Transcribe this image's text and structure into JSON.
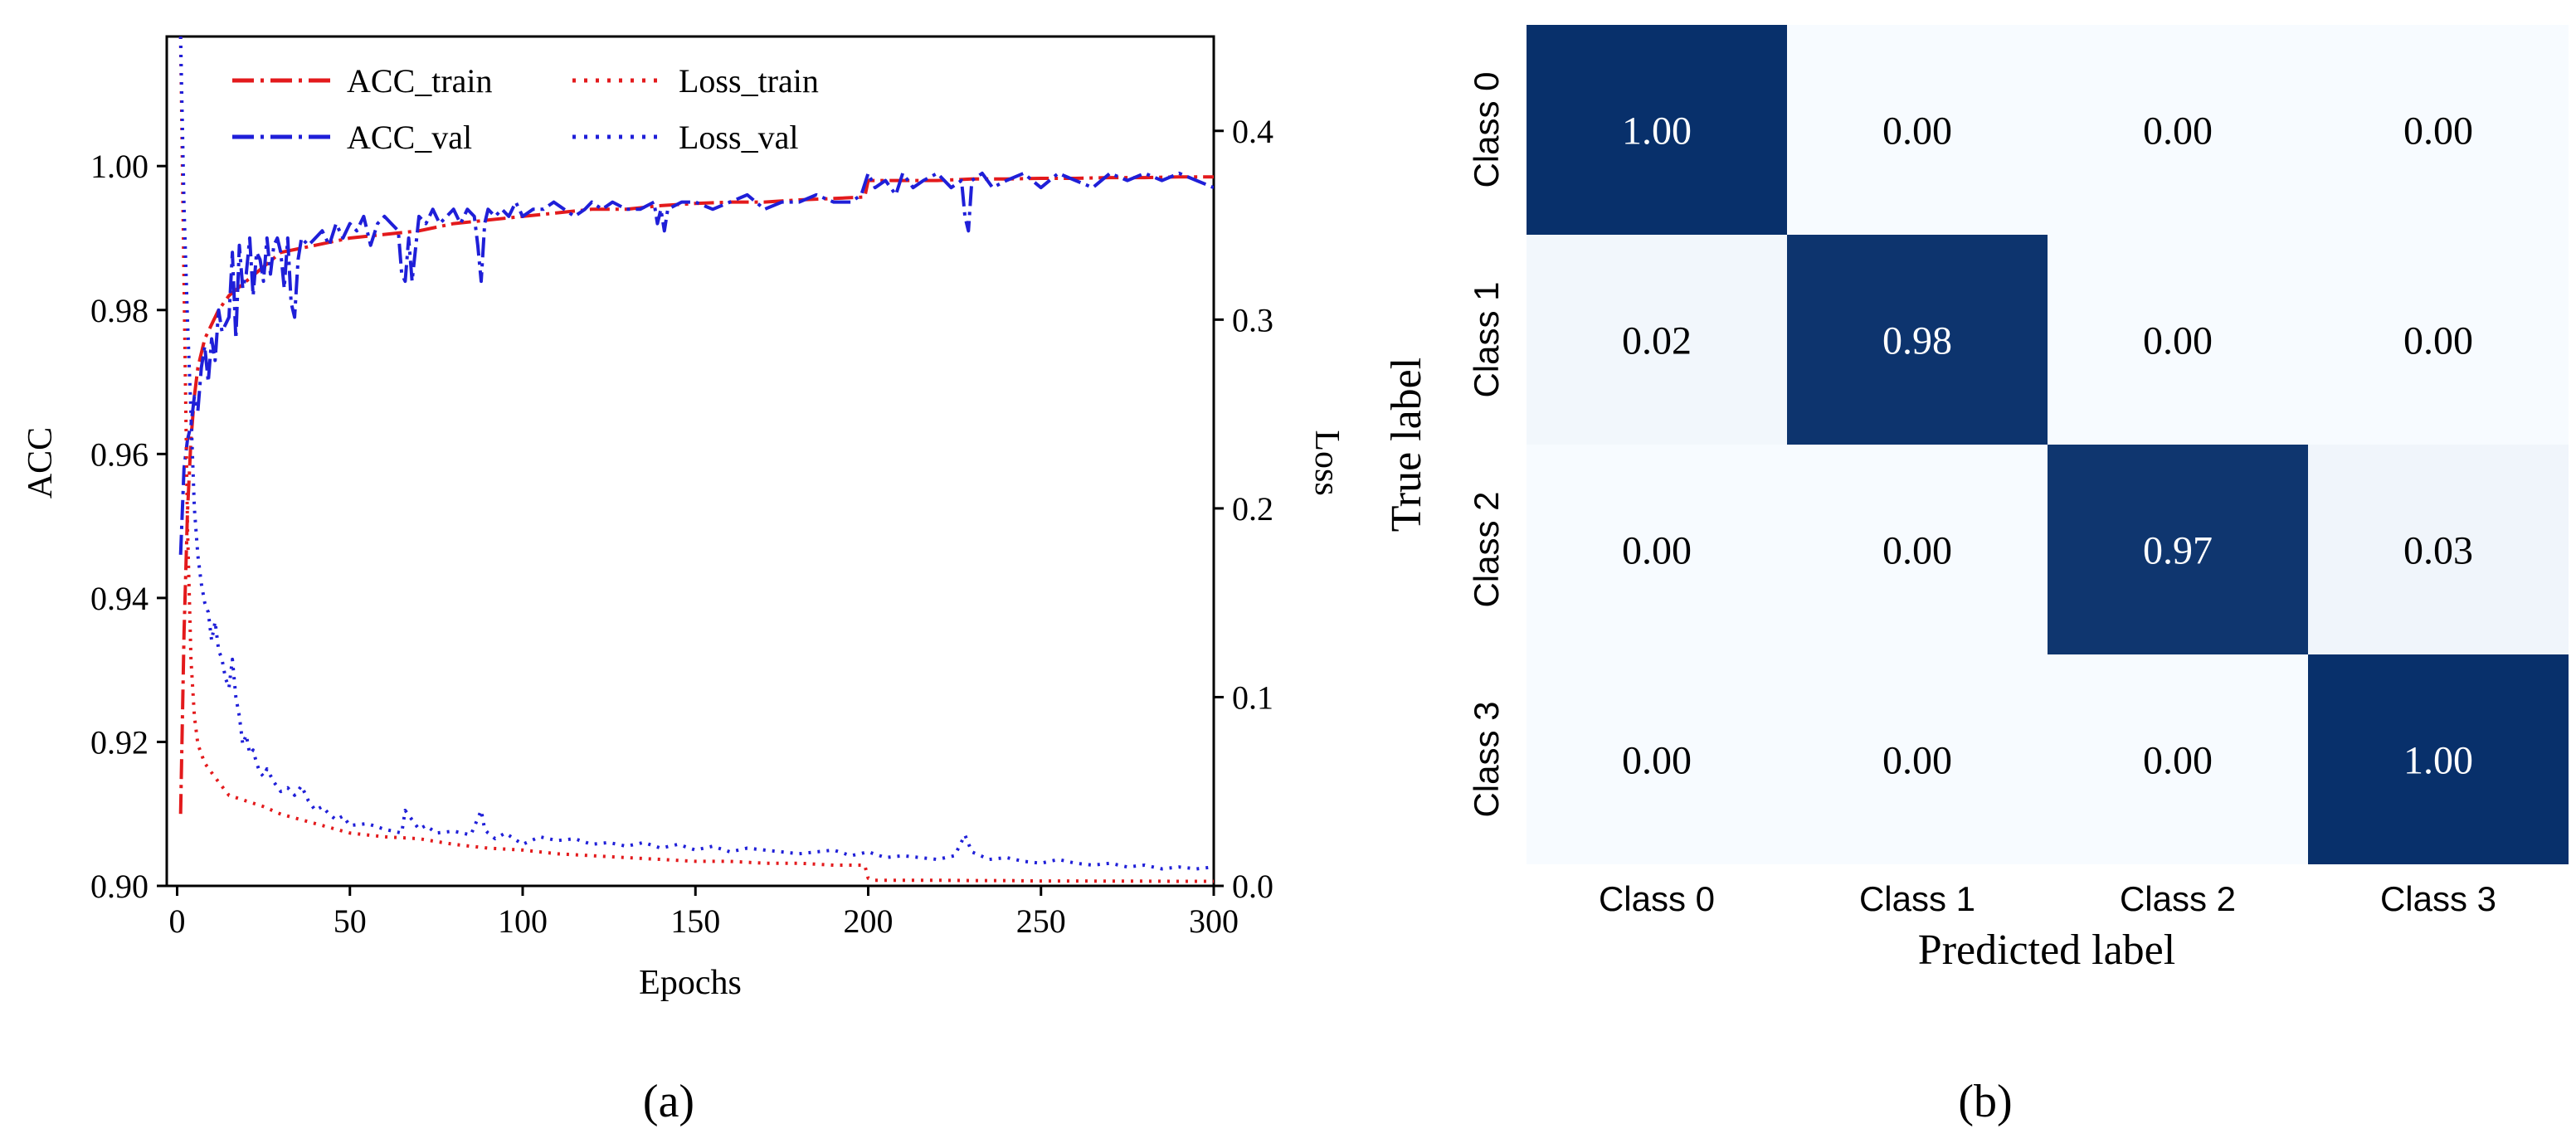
{
  "chart_data": [
    {
      "type": "line",
      "panel_label": "(a)",
      "xlabel": "Epochs",
      "ylabel": "ACC",
      "y2label": "Loss",
      "xlim": [
        -3,
        300
      ],
      "ylim": [
        0.9,
        1.018
      ],
      "y2lim": [
        0.0,
        0.45
      ],
      "xticks": [
        "0",
        "50",
        "100",
        "150",
        "200",
        "250",
        "300"
      ],
      "yticks": [
        "0.90",
        "0.92",
        "0.94",
        "0.96",
        "0.98",
        "1.00"
      ],
      "y2ticks": [
        "0.0",
        "0.1",
        "0.2",
        "0.3",
        "0.4"
      ],
      "legend": [
        "ACC_train",
        "ACC_val",
        "Loss_train",
        "Loss_val"
      ],
      "series": [
        {
          "name": "ACC_train",
          "axis": "left",
          "color": "#e31a1c",
          "style": "dashdot",
          "x": [
            1,
            2,
            3,
            4,
            5,
            6,
            8,
            10,
            12,
            15,
            20,
            25,
            30,
            40,
            50,
            60,
            70,
            80,
            90,
            100,
            110,
            120,
            130,
            140,
            150,
            160,
            170,
            180,
            190,
            199,
            200,
            202,
            210,
            220,
            230,
            240,
            250,
            260,
            270,
            280,
            290,
            300
          ],
          "y": [
            0.91,
            0.935,
            0.952,
            0.962,
            0.968,
            0.972,
            0.976,
            0.978,
            0.98,
            0.982,
            0.984,
            0.986,
            0.988,
            0.989,
            0.99,
            0.9905,
            0.991,
            0.992,
            0.9925,
            0.993,
            0.9935,
            0.994,
            0.994,
            0.9945,
            0.9948,
            0.995,
            0.995,
            0.9953,
            0.9955,
            0.9957,
            0.998,
            0.998,
            0.998,
            0.998,
            0.9982,
            0.9982,
            0.9983,
            0.9983,
            0.9984,
            0.9984,
            0.9985,
            0.9985
          ]
        },
        {
          "name": "ACC_val",
          "axis": "left",
          "color": "#1f1fd8",
          "style": "dashdot",
          "x": [
            1,
            2,
            3,
            4,
            5,
            6,
            7,
            8,
            9,
            10,
            11,
            12,
            13,
            14,
            15,
            16,
            17,
            18,
            19,
            20,
            21,
            22,
            23,
            24,
            25,
            26,
            27,
            28,
            29,
            30,
            31,
            32,
            33,
            34,
            35,
            36,
            38,
            40,
            42,
            44,
            46,
            48,
            50,
            52,
            54,
            56,
            58,
            60,
            62,
            64,
            65,
            66,
            67,
            68,
            70,
            72,
            74,
            76,
            78,
            80,
            82,
            84,
            86,
            87,
            88,
            89,
            90,
            92,
            94,
            96,
            98,
            100,
            103,
            106,
            109,
            112,
            115,
            118,
            120,
            123,
            126,
            130,
            134,
            138,
            139,
            140,
            141,
            142,
            146,
            150,
            155,
            160,
            165,
            170,
            175,
            180,
            185,
            190,
            195,
            198,
            200,
            202,
            205,
            208,
            210,
            213,
            216,
            220,
            224,
            227,
            228,
            229,
            230,
            233,
            236,
            240,
            245,
            250,
            255,
            260,
            265,
            270,
            275,
            280,
            285,
            290,
            295,
            300
          ],
          "y": [
            0.946,
            0.958,
            0.962,
            0.964,
            0.968,
            0.966,
            0.972,
            0.975,
            0.97,
            0.976,
            0.973,
            0.98,
            0.977,
            0.978,
            0.979,
            0.988,
            0.976,
            0.989,
            0.983,
            0.985,
            0.99,
            0.982,
            0.988,
            0.987,
            0.984,
            0.99,
            0.985,
            0.989,
            0.99,
            0.988,
            0.983,
            0.99,
            0.981,
            0.979,
            0.987,
            0.99,
            0.989,
            0.99,
            0.991,
            0.989,
            0.992,
            0.99,
            0.992,
            0.991,
            0.993,
            0.989,
            0.992,
            0.993,
            0.992,
            0.991,
            0.985,
            0.984,
            0.99,
            0.984,
            0.993,
            0.992,
            0.994,
            0.992,
            0.993,
            0.994,
            0.992,
            0.994,
            0.993,
            0.989,
            0.984,
            0.992,
            0.994,
            0.993,
            0.994,
            0.993,
            0.995,
            0.993,
            0.994,
            0.994,
            0.995,
            0.994,
            0.993,
            0.994,
            0.995,
            0.994,
            0.995,
            0.994,
            0.994,
            0.995,
            0.992,
            0.994,
            0.991,
            0.994,
            0.995,
            0.995,
            0.994,
            0.995,
            0.996,
            0.994,
            0.995,
            0.995,
            0.996,
            0.995,
            0.995,
            0.996,
            0.999,
            0.997,
            0.998,
            0.996,
            0.999,
            0.997,
            0.998,
            0.999,
            0.997,
            0.998,
            0.993,
            0.991,
            0.998,
            0.999,
            0.997,
            0.998,
            0.999,
            0.997,
            0.999,
            0.998,
            0.997,
            0.999,
            0.998,
            0.999,
            0.998,
            0.999,
            0.998,
            0.997
          ]
        },
        {
          "name": "Loss_train",
          "axis": "right",
          "color": "#e31a1c",
          "style": "dotted",
          "x": [
            1,
            2,
            3,
            4,
            5,
            6,
            8,
            10,
            12,
            15,
            20,
            25,
            30,
            40,
            50,
            60,
            70,
            80,
            90,
            100,
            110,
            120,
            130,
            140,
            150,
            160,
            170,
            180,
            190,
            199,
            200,
            202,
            210,
            220,
            230,
            240,
            250,
            260,
            270,
            280,
            290,
            300
          ],
          "y": [
            0.45,
            0.32,
            0.19,
            0.12,
            0.09,
            0.075,
            0.065,
            0.06,
            0.055,
            0.048,
            0.045,
            0.042,
            0.038,
            0.033,
            0.028,
            0.026,
            0.025,
            0.022,
            0.02,
            0.019,
            0.017,
            0.016,
            0.015,
            0.014,
            0.013,
            0.013,
            0.012,
            0.012,
            0.011,
            0.011,
            0.004,
            0.003,
            0.003,
            0.003,
            0.0028,
            0.0028,
            0.0026,
            0.0026,
            0.0025,
            0.0025,
            0.0024,
            0.0024
          ]
        },
        {
          "name": "Loss_val",
          "axis": "right",
          "color": "#1f1fd8",
          "style": "dotted",
          "x": [
            1,
            2,
            3,
            4,
            5,
            6,
            7,
            8,
            9,
            10,
            11,
            12,
            13,
            14,
            15,
            16,
            17,
            18,
            19,
            20,
            21,
            22,
            23,
            24,
            25,
            26,
            28,
            30,
            32,
            34,
            36,
            38,
            40,
            42,
            44,
            46,
            48,
            50,
            55,
            60,
            65,
            66,
            68,
            70,
            72,
            75,
            80,
            85,
            88,
            89,
            90,
            92,
            95,
            100,
            105,
            110,
            115,
            120,
            125,
            130,
            135,
            140,
            145,
            150,
            155,
            160,
            165,
            170,
            175,
            180,
            185,
            190,
            195,
            200,
            205,
            210,
            215,
            220,
            225,
            228,
            230,
            235,
            240,
            245,
            250,
            255,
            260,
            265,
            270,
            275,
            280,
            285,
            290,
            295,
            300
          ],
          "y": [
            0.45,
            0.36,
            0.3,
            0.25,
            0.2,
            0.175,
            0.16,
            0.15,
            0.145,
            0.13,
            0.14,
            0.125,
            0.12,
            0.11,
            0.105,
            0.12,
            0.1,
            0.09,
            0.075,
            0.08,
            0.07,
            0.072,
            0.065,
            0.06,
            0.058,
            0.062,
            0.055,
            0.05,
            0.052,
            0.048,
            0.053,
            0.045,
            0.04,
            0.042,
            0.038,
            0.035,
            0.037,
            0.032,
            0.033,
            0.03,
            0.028,
            0.04,
            0.035,
            0.03,
            0.032,
            0.028,
            0.029,
            0.027,
            0.04,
            0.03,
            0.028,
            0.025,
            0.028,
            0.022,
            0.026,
            0.024,
            0.025,
            0.022,
            0.023,
            0.021,
            0.023,
            0.02,
            0.022,
            0.019,
            0.021,
            0.018,
            0.02,
            0.019,
            0.018,
            0.017,
            0.018,
            0.019,
            0.016,
            0.018,
            0.015,
            0.016,
            0.015,
            0.014,
            0.016,
            0.027,
            0.018,
            0.014,
            0.015,
            0.013,
            0.012,
            0.014,
            0.012,
            0.011,
            0.012,
            0.01,
            0.011,
            0.009,
            0.01,
            0.009,
            0.01
          ]
        }
      ]
    },
    {
      "type": "heatmap",
      "panel_label": "(b)",
      "xlabel": "Predicted label",
      "ylabel": "True label",
      "row_labels": [
        "Class 0",
        "Class 1",
        "Class 2",
        "Class 3"
      ],
      "col_labels": [
        "Class 0",
        "Class 1",
        "Class 2",
        "Class 3"
      ],
      "values": [
        [
          1.0,
          0.0,
          0.0,
          0.0
        ],
        [
          0.02,
          0.98,
          0.0,
          0.0
        ],
        [
          0.0,
          0.0,
          0.97,
          0.03
        ],
        [
          0.0,
          0.0,
          0.0,
          1.0
        ]
      ],
      "cell_labels": [
        [
          "1.00",
          "0.00",
          "0.00",
          "0.00"
        ],
        [
          "0.02",
          "0.98",
          "0.00",
          "0.00"
        ],
        [
          "0.00",
          "0.00",
          "0.97",
          "0.03"
        ],
        [
          "0.00",
          "0.00",
          "0.00",
          "1.00"
        ]
      ],
      "colormap": {
        "low": "#f7fbff",
        "high": "#08306b"
      }
    }
  ]
}
